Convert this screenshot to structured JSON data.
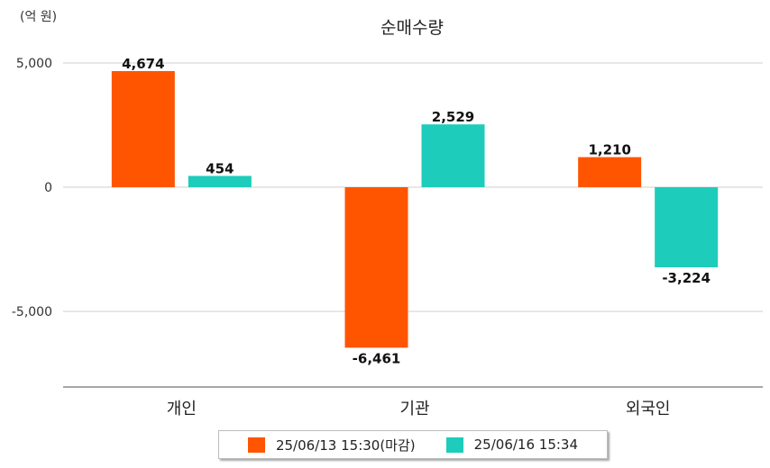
{
  "chart_data": {
    "type": "bar",
    "title": "순매수량",
    "unit_label": "(억 원)",
    "categories": [
      "개인",
      "기관",
      "외국인"
    ],
    "series": [
      {
        "name": "25/06/13 15:30(마감)",
        "color": "#ff5500",
        "values": [
          4674,
          -6461,
          1210
        ],
        "labels": [
          "4,674",
          "-6,461",
          "1,210"
        ]
      },
      {
        "name": "25/06/16 15:34",
        "color": "#1dccbb",
        "values": [
          454,
          2529,
          -3224
        ],
        "labels": [
          "454",
          "2,529",
          "-3,224"
        ]
      }
    ],
    "yticks": [
      5000,
      0,
      -5000
    ],
    "ytick_labels": [
      "5,000",
      "0",
      "-5,000"
    ],
    "ylim": [
      -8000,
      5000
    ],
    "grid": true,
    "legend_position": "bottom"
  }
}
